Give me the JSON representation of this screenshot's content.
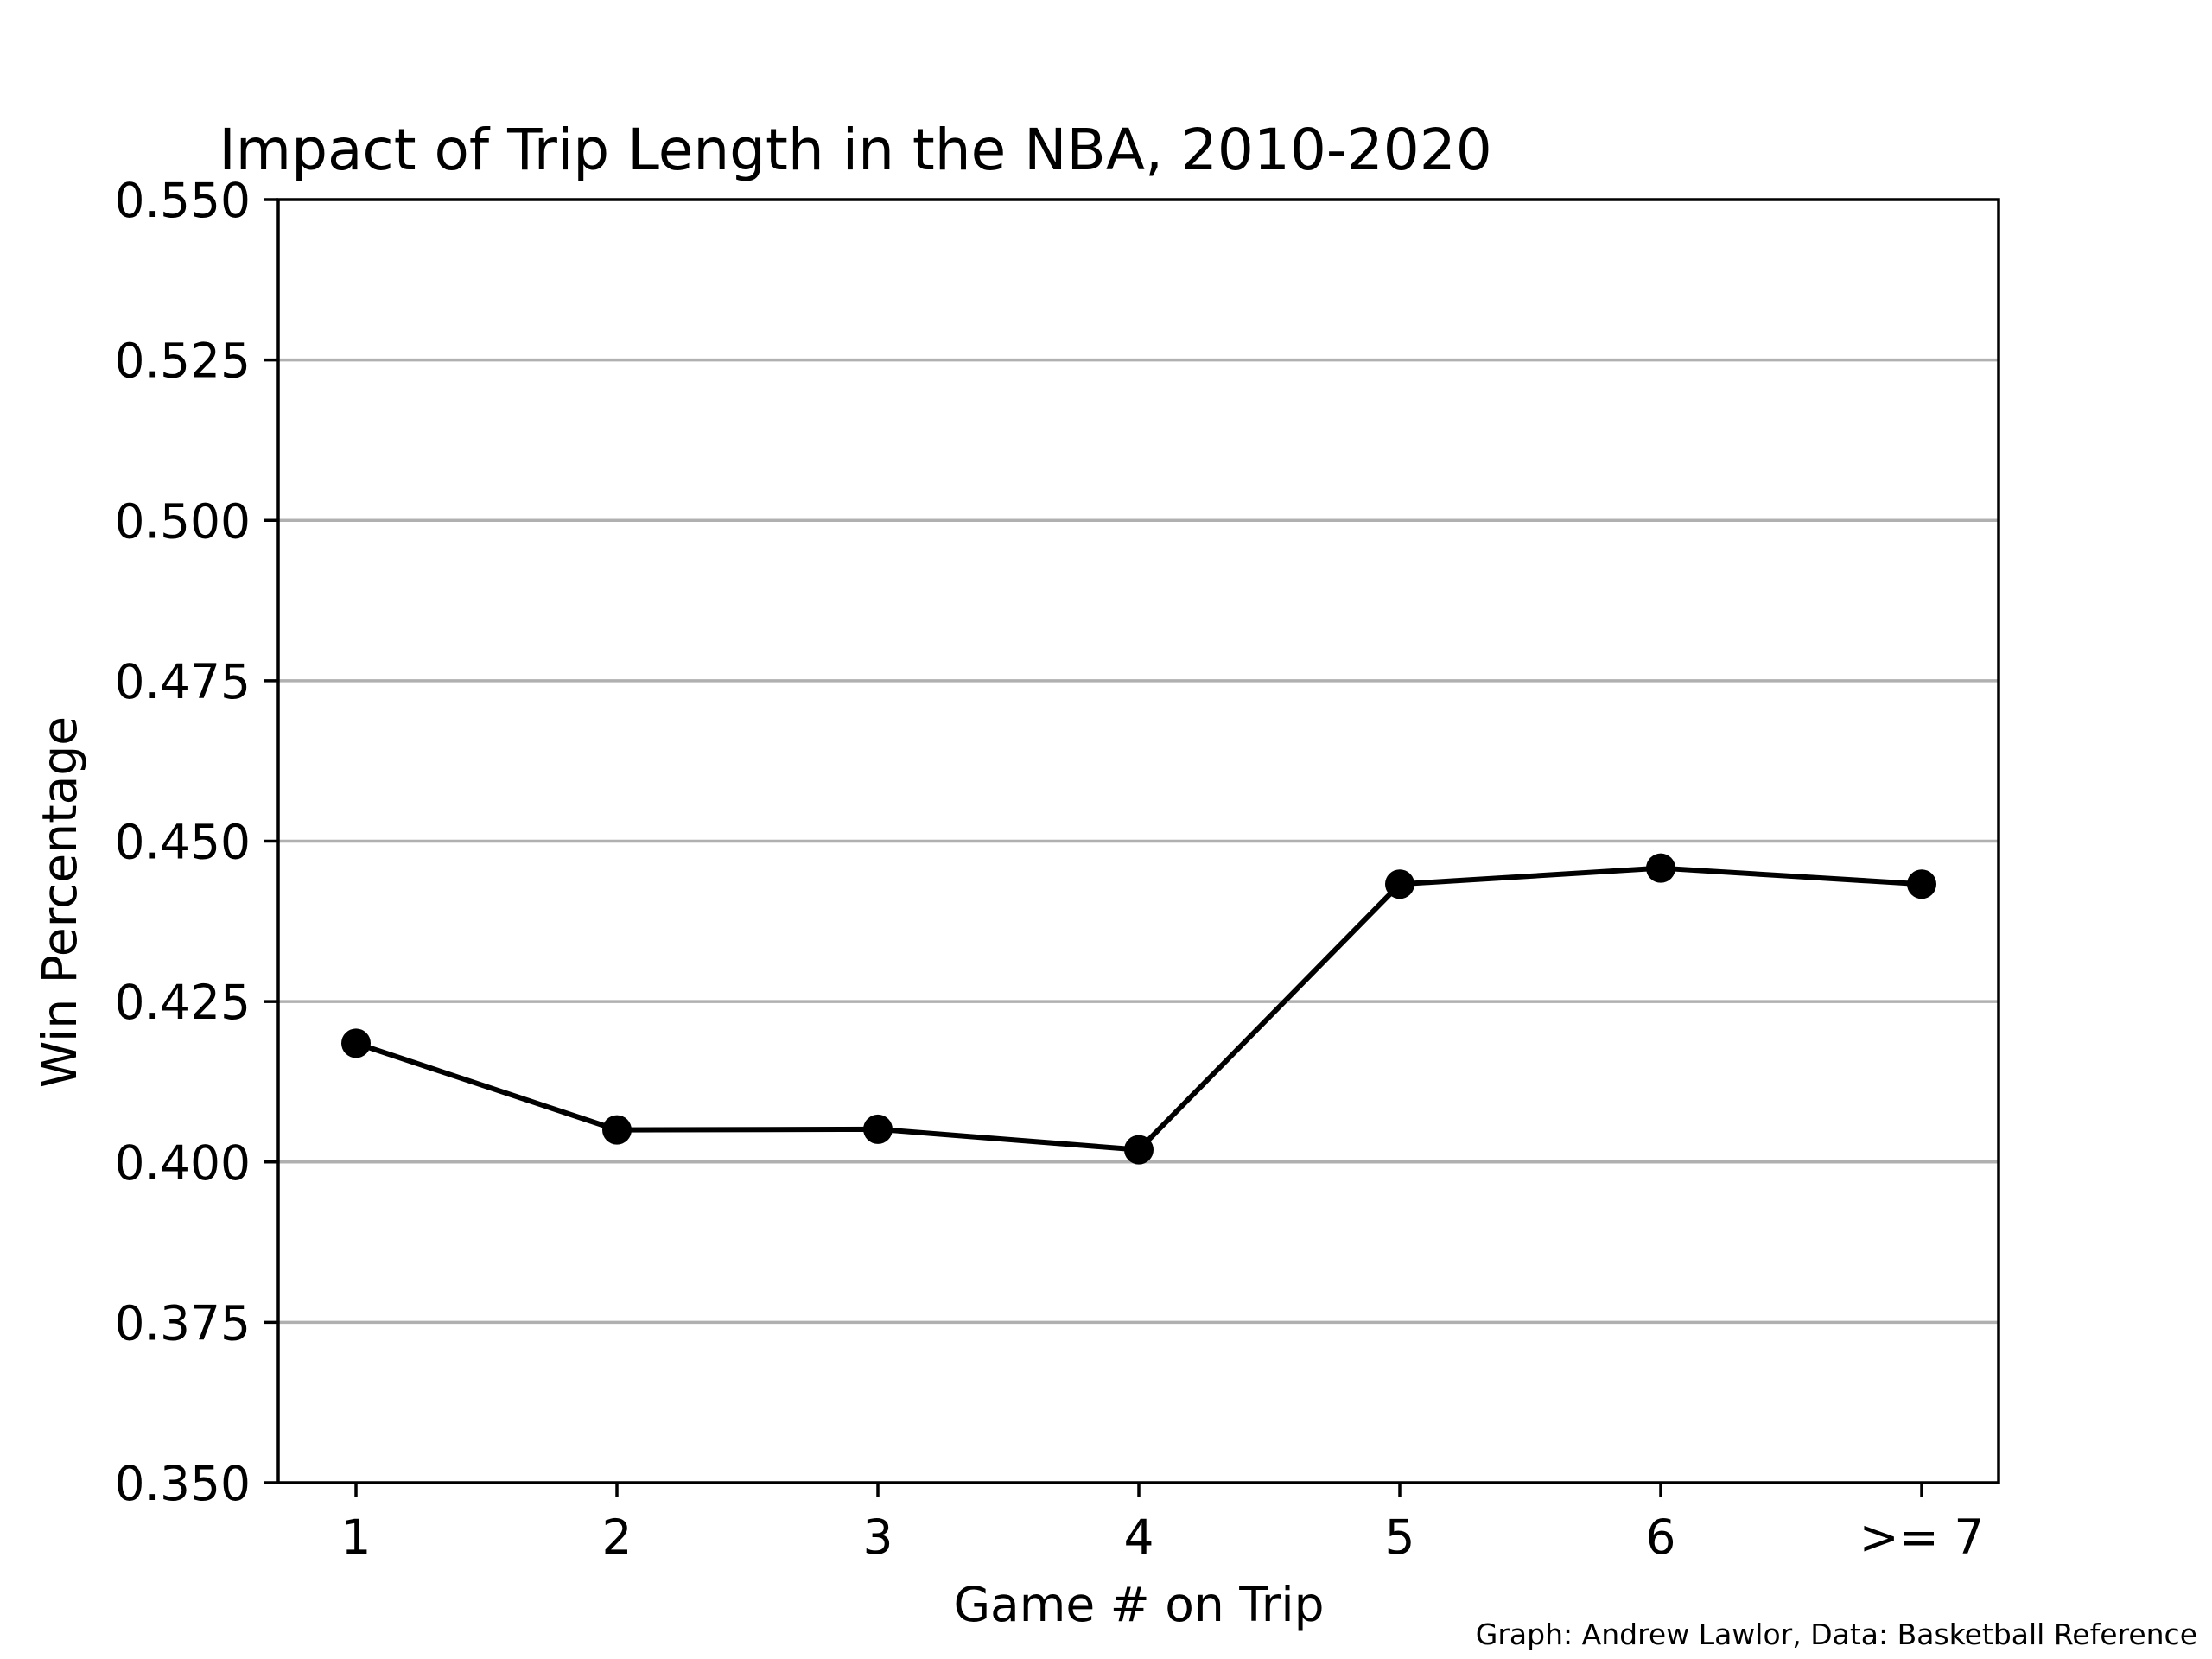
{
  "chart_data": {
    "type": "line",
    "title": "Impact of Trip Length in the NBA, 2010-2020",
    "xlabel": "Game # on Trip",
    "ylabel": "Win Percentage",
    "credit": "Graph: Andrew Lawlor, Data: Basketball Reference",
    "categories": [
      "1",
      "2",
      "3",
      "4",
      "5",
      "6",
      ">= 7"
    ],
    "series": [
      {
        "values": [
          0.4185,
          0.405,
          0.4051,
          0.4019,
          0.4433,
          0.4458,
          0.4433
        ]
      }
    ],
    "ylim": [
      0.35,
      0.55
    ],
    "yticks": [
      0.35,
      0.375,
      0.4,
      0.425,
      0.45,
      0.475,
      0.5,
      0.525,
      0.55
    ],
    "ytick_labels": [
      "0.350",
      "0.375",
      "0.400",
      "0.425",
      "0.450",
      "0.475",
      "0.500",
      "0.525",
      "0.550"
    ],
    "grid": "horizontal",
    "colors": {
      "line": "#000000",
      "marker": "#000000",
      "grid": "#b0b0b0",
      "axes": "#000000"
    }
  }
}
